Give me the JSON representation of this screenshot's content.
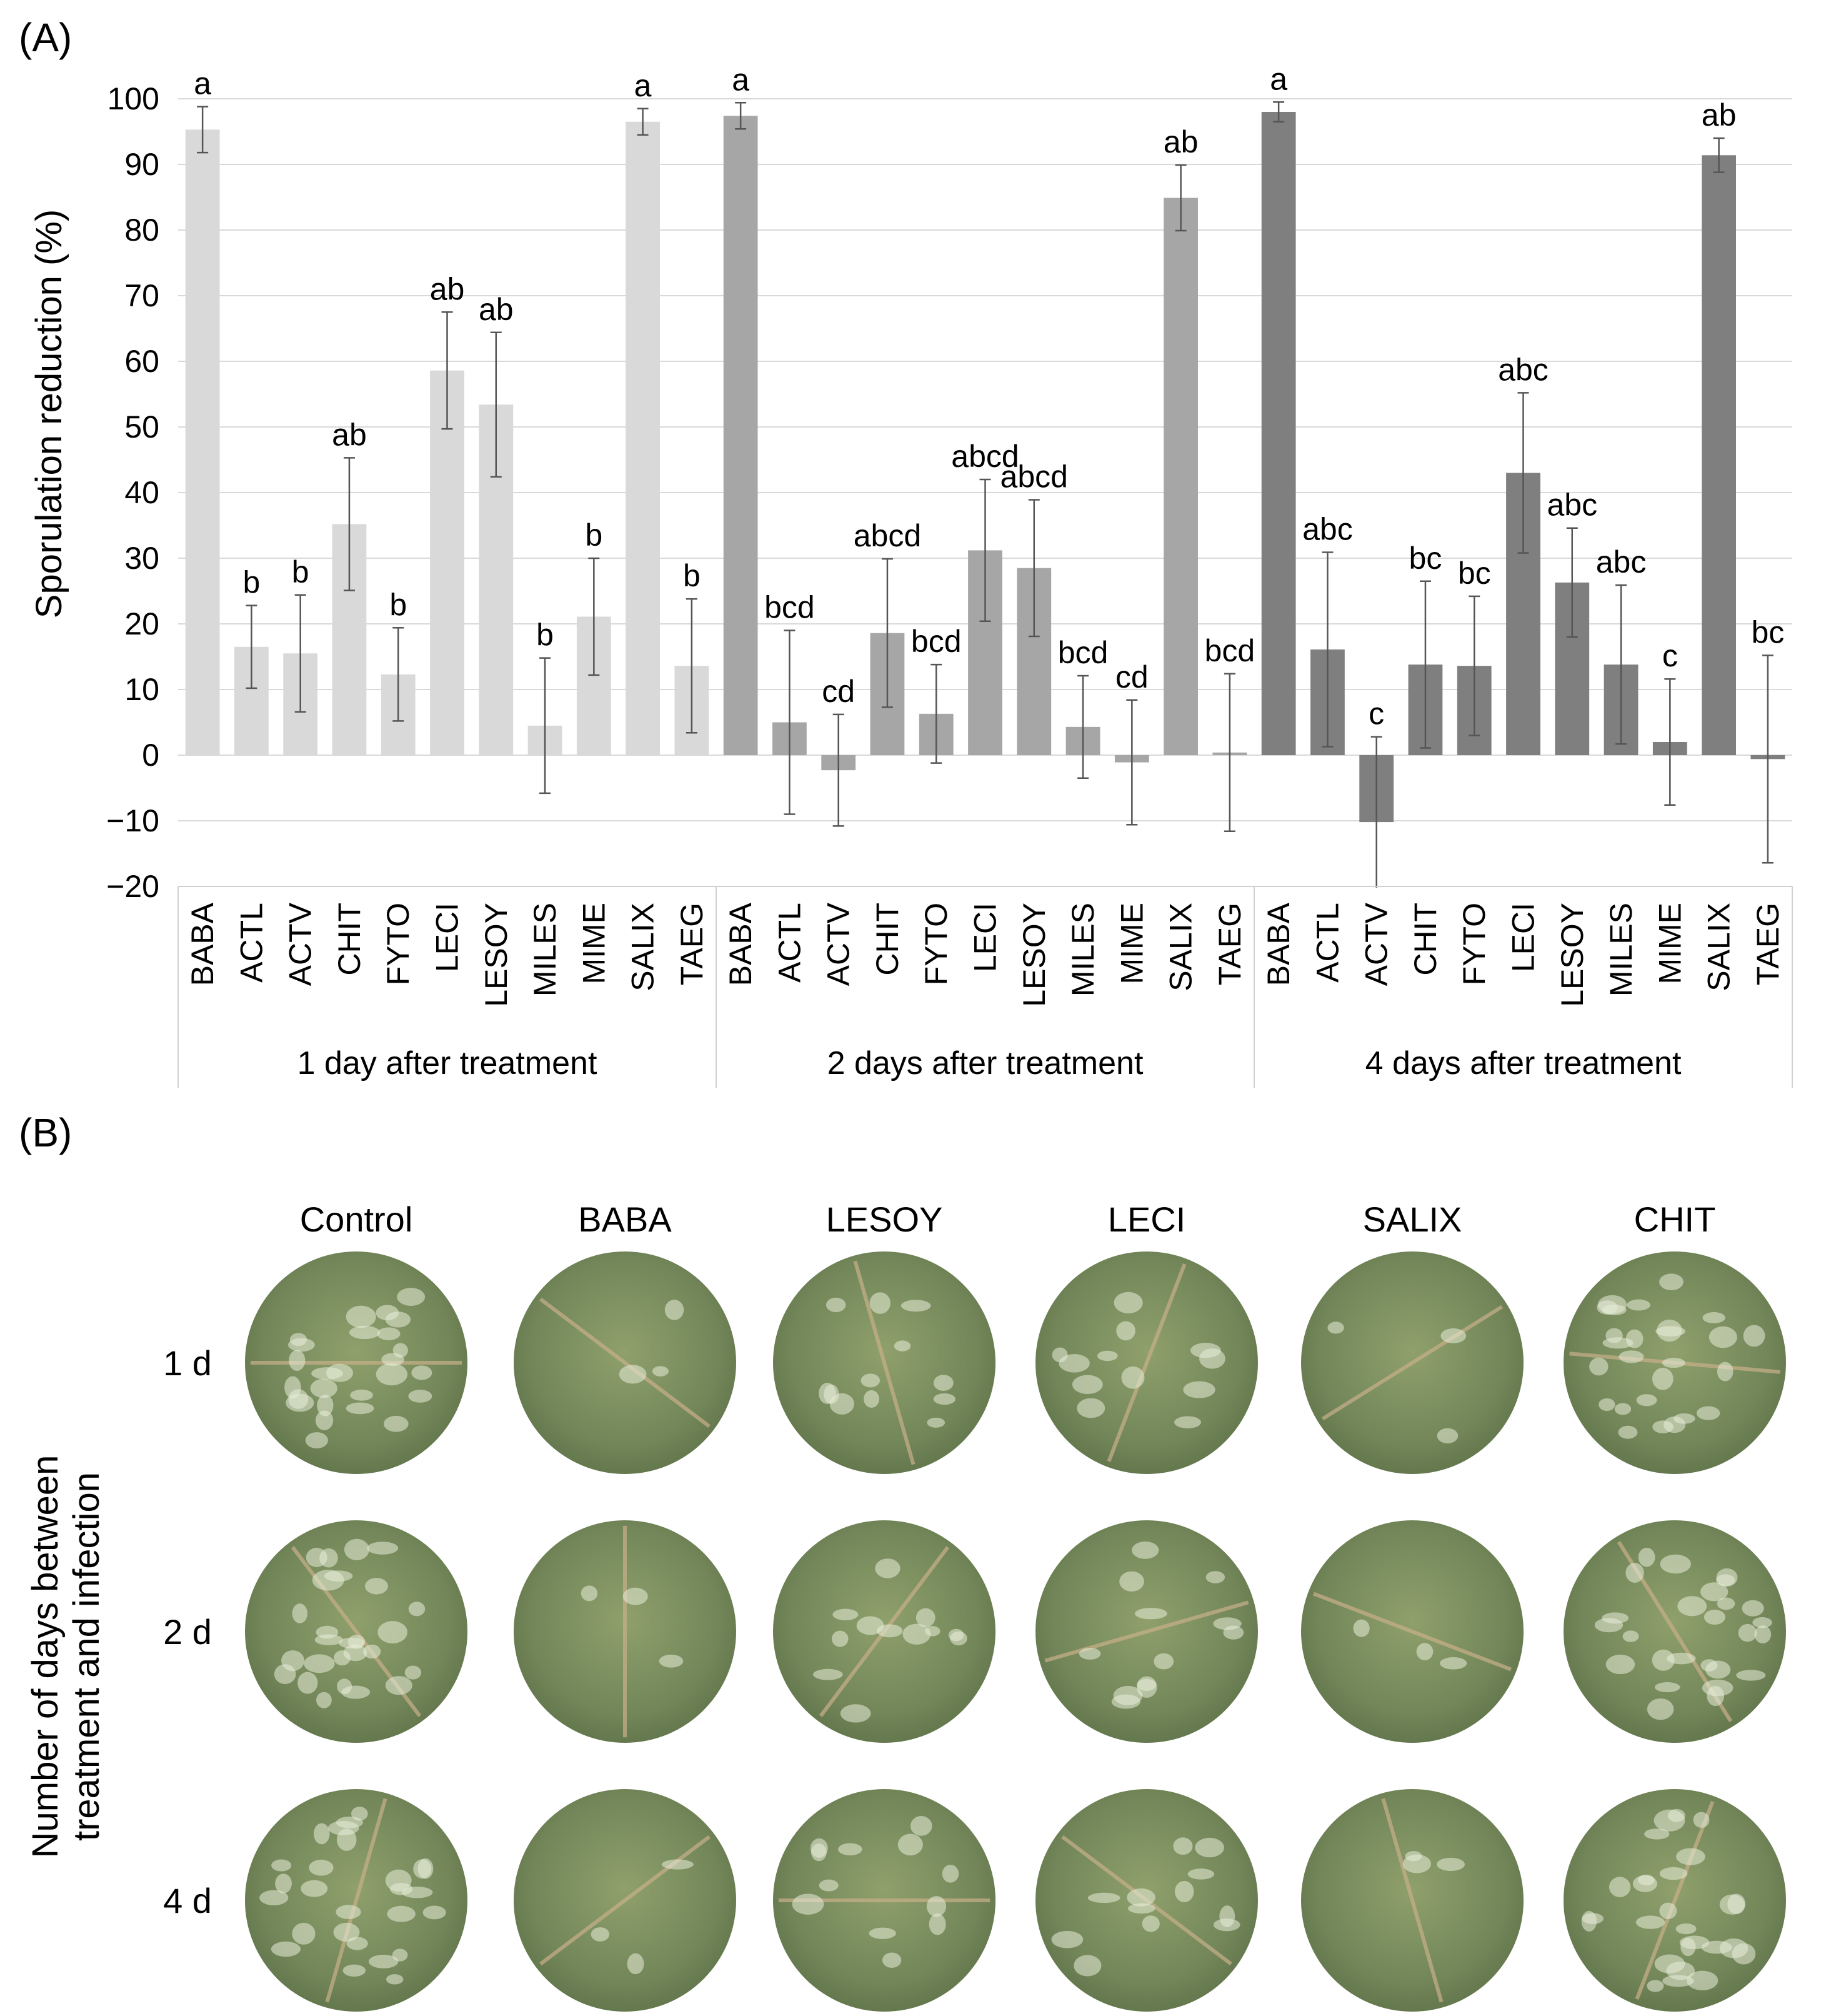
{
  "panels": {
    "a_label": "(A)",
    "b_label": "(B)"
  },
  "chart_data": {
    "type": "bar",
    "ylabel": "Sporulation reduction (%)",
    "ylim": [
      -20,
      100
    ],
    "yticks": [
      100,
      90,
      80,
      70,
      60,
      50,
      40,
      30,
      20,
      10,
      0,
      -10,
      -20
    ],
    "grid": true,
    "categories": [
      "BABA",
      "ACTL",
      "ACTV",
      "CHIT",
      "FYTO",
      "LECI",
      "LESOY",
      "MILES",
      "MIME",
      "SALIX",
      "TAEG"
    ],
    "series": [
      {
        "name": "1 day after treatment",
        "color": "#d9d9d9",
        "values": [
          95.3,
          16.5,
          15.5,
          35.2,
          12.3,
          58.6,
          53.4,
          4.5,
          21.1,
          96.5,
          13.6
        ],
        "errors": [
          3.5,
          6.3,
          8.9,
          10.1,
          7.1,
          8.9,
          11.0,
          10.3,
          8.9,
          2.0,
          10.2
        ],
        "letters": [
          "a",
          "b",
          "b",
          "ab",
          "b",
          "ab",
          "ab",
          "b",
          "b",
          "a",
          "b"
        ]
      },
      {
        "name": "2 days after treatment",
        "color": "#a6a6a6",
        "values": [
          97.4,
          5.0,
          -2.3,
          18.6,
          6.3,
          31.2,
          28.5,
          4.3,
          -1.1,
          84.9,
          0.4
        ],
        "errors": [
          2.0,
          14.0,
          8.5,
          11.3,
          7.5,
          10.8,
          10.4,
          7.8,
          9.5,
          5.0,
          12.0
        ],
        "letters": [
          "a",
          "bcd",
          "cd",
          "abcd",
          "bcd",
          "abcd",
          "abcd",
          "bcd",
          "cd",
          "ab",
          "bcd"
        ]
      },
      {
        "name": "4 days after treatment",
        "color": "#7f7f7f",
        "values": [
          98.0,
          16.1,
          -10.2,
          13.8,
          13.6,
          43.0,
          26.3,
          13.8,
          2.0,
          91.4,
          -0.6
        ],
        "errors": [
          1.5,
          14.8,
          13.0,
          12.7,
          10.6,
          12.2,
          8.3,
          12.1,
          9.6,
          2.6,
          15.8
        ],
        "letters": [
          "a",
          "abc",
          "c",
          "bc",
          "bc",
          "abc",
          "abc",
          "abc",
          "c",
          "ab",
          "bc"
        ]
      }
    ]
  },
  "photo_grid": {
    "ylabel_line1": "Number of days between",
    "ylabel_line2": "treatment and infection",
    "columns": [
      "Control",
      "BABA",
      "LESOY",
      "LECI",
      "SALIX",
      "CHIT"
    ],
    "rows": [
      "1 d",
      "2 d",
      "4 d"
    ]
  },
  "colors": {
    "grid": "#d9d9d9",
    "leaf_base": "#7a8f5c",
    "vein": "#c9b08a",
    "error_bar": "#555555"
  }
}
